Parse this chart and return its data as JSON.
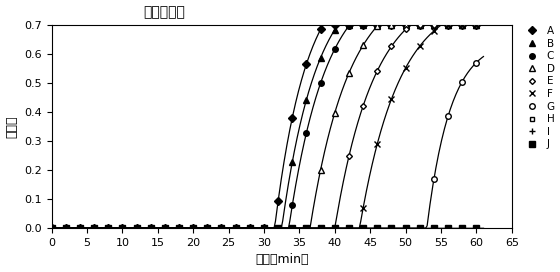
{
  "title": "敏感性试验",
  "xlabel": "时间（min）",
  "ylabel": "濁度值",
  "xlim": [
    0,
    65
  ],
  "ylim": [
    0,
    0.7
  ],
  "xticks": [
    0,
    5,
    10,
    15,
    20,
    25,
    30,
    35,
    40,
    45,
    50,
    55,
    60,
    65
  ],
  "yticks": [
    0.0,
    0.1,
    0.2,
    0.3,
    0.4,
    0.5,
    0.6,
    0.7
  ],
  "series": [
    {
      "label": "A",
      "t0": 31.5,
      "k": 0.22,
      "ymax": 0.9,
      "marker": "D",
      "filled": true,
      "ms": 4
    },
    {
      "label": "B",
      "t0": 32.5,
      "k": 0.2,
      "ymax": 0.88,
      "marker": "^",
      "filled": true,
      "ms": 4
    },
    {
      "label": "C",
      "t0": 33.5,
      "k": 0.19,
      "ymax": 0.87,
      "marker": "o",
      "filled": true,
      "ms": 4
    },
    {
      "label": "D",
      "t0": 36.5,
      "k": 0.18,
      "ymax": 0.85,
      "marker": "^",
      "filled": false,
      "ms": 4
    },
    {
      "label": "E",
      "t0": 40.0,
      "k": 0.18,
      "ymax": 0.82,
      "marker": "D",
      "filled": false,
      "ms": 3
    },
    {
      "label": "F",
      "t0": 43.5,
      "k": 0.18,
      "ymax": 0.8,
      "marker": "x",
      "filled": true,
      "ms": 5
    },
    {
      "label": "G",
      "t0": 53.0,
      "k": 0.3,
      "ymax": 0.65,
      "marker": "o",
      "filled": false,
      "ms": 4
    },
    {
      "label": "H",
      "t0": 80.0,
      "k": 0.3,
      "ymax": 0.02,
      "marker": "s",
      "filled": false,
      "ms": 3
    },
    {
      "label": "I",
      "t0": 90.0,
      "k": 0.3,
      "ymax": 0.01,
      "marker": "+",
      "filled": true,
      "ms": 5
    },
    {
      "label": "J",
      "t0": 999.0,
      "k": 0.3,
      "ymax": 0.0,
      "marker": "s",
      "filled": true,
      "ms": 4
    }
  ],
  "color": "#000000",
  "lw": 0.9,
  "markevery": 2,
  "t_points": 300
}
